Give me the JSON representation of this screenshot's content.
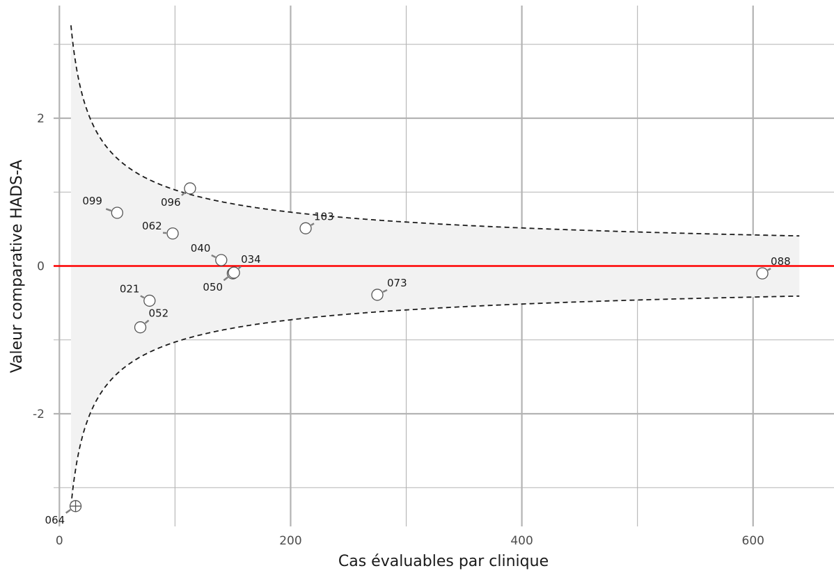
{
  "chart_data": {
    "type": "scatter",
    "subtype": "funnel-plot",
    "title": "",
    "xlabel": "Cas évaluables par clinique",
    "ylabel": "Valeur comparative HADS-A",
    "xlim": [
      -5,
      670
    ],
    "ylim": [
      -3.6,
      3.6
    ],
    "x_ticks": [
      0,
      200,
      400,
      600
    ],
    "x_tick_labels": [
      "0",
      "200",
      "400",
      "600"
    ],
    "y_ticks": [
      -2,
      0,
      2
    ],
    "y_tick_labels": [
      "-2",
      "0",
      "2"
    ],
    "grid": true,
    "reference_line": {
      "y": 0,
      "color": "#ff0000"
    },
    "control_limits": {
      "formula": "±k/sqrt(n)",
      "k": 10.3,
      "x_range": [
        10,
        640
      ],
      "band_color": "#f2f2f2",
      "line_style": "dashed"
    },
    "points": [
      {
        "label": "064",
        "x": 14,
        "y": -3.25,
        "outlier": true
      },
      {
        "label": "099",
        "x": 50,
        "y": 0.72
      },
      {
        "label": "052",
        "x": 70,
        "y": -0.83
      },
      {
        "label": "021",
        "x": 78,
        "y": -0.47
      },
      {
        "label": "062",
        "x": 98,
        "y": 0.44
      },
      {
        "label": "096",
        "x": 113,
        "y": 1.05
      },
      {
        "label": "040",
        "x": 140,
        "y": 0.08
      },
      {
        "label": "050",
        "x": 150,
        "y": -0.1
      },
      {
        "label": "034",
        "x": 151,
        "y": -0.09
      },
      {
        "label": "103",
        "x": 213,
        "y": 0.51
      },
      {
        "label": "073",
        "x": 275,
        "y": -0.39
      },
      {
        "label": "088",
        "x": 608,
        "y": -0.1
      }
    ],
    "colors": {
      "point_fill": "#ffffff",
      "point_stroke": "#555555",
      "leader": "#808080",
      "grid": "#b3b3b3"
    }
  }
}
